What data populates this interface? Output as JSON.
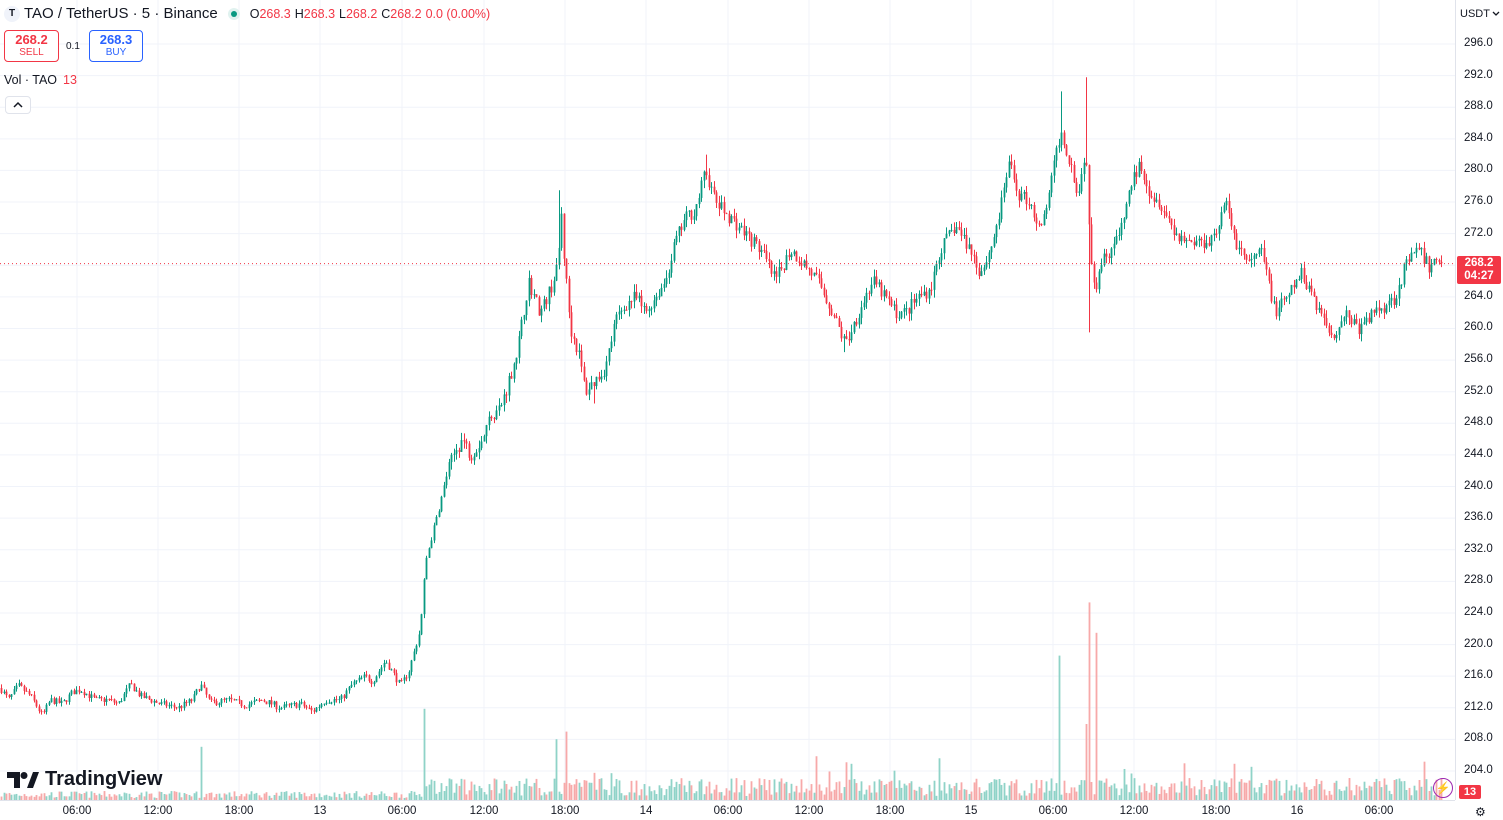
{
  "legend": {
    "symbol_icon": "T",
    "title": "TAO / TetherUS · 5 · Binance",
    "ohlc": [
      {
        "k": "O",
        "v": "268.3"
      },
      {
        "k": "H",
        "v": "268.3"
      },
      {
        "k": "L",
        "v": "268.2"
      },
      {
        "k": "C",
        "v": "268.2"
      }
    ],
    "change": "0.0 (0.00%)"
  },
  "trade": {
    "sell_price": "268.2",
    "sell_label": "SELL",
    "spread": "0.1",
    "buy_price": "268.3",
    "buy_label": "BUY"
  },
  "volume_legend": {
    "label": "Vol · TAO",
    "value": "13"
  },
  "currency": "USDT",
  "current_price_tag": {
    "price": "268.2",
    "countdown": "04:27"
  },
  "volume_tag": "13",
  "branding": "TradingView",
  "icons": {
    "collapse": "chevron-up-icon",
    "currency_dropdown": "chevron-down-icon",
    "bolt": "lightning-icon",
    "settings": "gear-icon",
    "logo": "tradingview-logo-icon"
  },
  "colors": {
    "up": "#089981",
    "down": "#f23645",
    "vol_up": "#8fd3c8",
    "vol_down": "#f7a9a9",
    "grid": "#f0f3fa"
  },
  "chart_data": {
    "type": "candlestick",
    "price_ticks": [
      "296.0",
      "292.0",
      "288.0",
      "284.0",
      "280.0",
      "276.0",
      "272.0",
      "268.0",
      "264.0",
      "260.0",
      "256.0",
      "252.0",
      "248.0",
      "244.0",
      "240.0",
      "236.0",
      "232.0",
      "228.0",
      "224.0",
      "220.0",
      "216.0",
      "212.0",
      "208.0",
      "204.0"
    ],
    "time_ticks": [
      "06:00",
      "12:00",
      "18:00",
      "13",
      "06:00",
      "12:00",
      "18:00",
      "14",
      "06:00",
      "12:00",
      "18:00",
      "15",
      "06:00",
      "12:00",
      "18:00",
      "16",
      "06:00"
    ],
    "current_price": 268.2,
    "close_path": [
      [
        0,
        214.5
      ],
      [
        8,
        213.0
      ],
      [
        18,
        214.8
      ],
      [
        30,
        213.5
      ],
      [
        42,
        211.0
      ],
      [
        50,
        213.0
      ],
      [
        62,
        212.5
      ],
      [
        72,
        214.0
      ],
      [
        80,
        214.3
      ],
      [
        95,
        213.0
      ],
      [
        108,
        213.0
      ],
      [
        118,
        212.5
      ],
      [
        130,
        215.0
      ],
      [
        140,
        213.5
      ],
      [
        160,
        212.5
      ],
      [
        178,
        212.0
      ],
      [
        192,
        213.0
      ],
      [
        200,
        215.0
      ],
      [
        210,
        212.6
      ],
      [
        228,
        213.0
      ],
      [
        245,
        212.3
      ],
      [
        262,
        213.0
      ],
      [
        280,
        212.0
      ],
      [
        300,
        212.5
      ],
      [
        312,
        211.5
      ],
      [
        325,
        213.0
      ],
      [
        340,
        213.0
      ],
      [
        352,
        215.0
      ],
      [
        365,
        216.0
      ],
      [
        372,
        215.3
      ],
      [
        385,
        218.0
      ],
      [
        400,
        214.8
      ],
      [
        408,
        216.5
      ],
      [
        420,
        222.0
      ],
      [
        425,
        230.5
      ],
      [
        432,
        234.0
      ],
      [
        440,
        238.0
      ],
      [
        447,
        242.0
      ],
      [
        455,
        244.5
      ],
      [
        462,
        246.0
      ],
      [
        470,
        244.0
      ],
      [
        482,
        246.0
      ],
      [
        490,
        249.0
      ],
      [
        500,
        250.0
      ],
      [
        510,
        254.0
      ],
      [
        518,
        258.0
      ],
      [
        528,
        266.0
      ],
      [
        540,
        262.0
      ],
      [
        550,
        265.0
      ],
      [
        558,
        268.0
      ],
      [
        560,
        276.5
      ],
      [
        563,
        270.0
      ],
      [
        570,
        260.0
      ],
      [
        578,
        257.0
      ],
      [
        585,
        252.0
      ],
      [
        595,
        253.5
      ],
      [
        605,
        255.0
      ],
      [
        615,
        261.0
      ],
      [
        625,
        263.0
      ],
      [
        635,
        264.0
      ],
      [
        645,
        262.0
      ],
      [
        655,
        264.0
      ],
      [
        665,
        266.0
      ],
      [
        675,
        271.0
      ],
      [
        685,
        274.0
      ],
      [
        695,
        275.0
      ],
      [
        705,
        280.0
      ],
      [
        715,
        276.0
      ],
      [
        730,
        274.0
      ],
      [
        745,
        272.0
      ],
      [
        760,
        270.0
      ],
      [
        775,
        266.0
      ],
      [
        790,
        270.0
      ],
      [
        805,
        268.0
      ],
      [
        820,
        265.5
      ],
      [
        832,
        262.0
      ],
      [
        845,
        258.0
      ],
      [
        858,
        262.0
      ],
      [
        872,
        266.0
      ],
      [
        885,
        264.0
      ],
      [
        895,
        262.0
      ],
      [
        905,
        262.0
      ],
      [
        918,
        264.0
      ],
      [
        930,
        265.0
      ],
      [
        940,
        270.0
      ],
      [
        955,
        273.0
      ],
      [
        970,
        270.0
      ],
      [
        980,
        267.0
      ],
      [
        990,
        270.0
      ],
      [
        1000,
        275.0
      ],
      [
        1008,
        281.0
      ],
      [
        1018,
        277.0
      ],
      [
        1030,
        276.0
      ],
      [
        1040,
        272.0
      ],
      [
        1050,
        278.0
      ],
      [
        1060,
        285.0
      ],
      [
        1070,
        281.0
      ],
      [
        1078,
        277.0
      ],
      [
        1085,
        283.0
      ],
      [
        1090,
        270.0
      ],
      [
        1095,
        265.0
      ],
      [
        1100,
        268.5
      ],
      [
        1110,
        270.0
      ],
      [
        1120,
        272.0
      ],
      [
        1130,
        278.0
      ],
      [
        1140,
        281.0
      ],
      [
        1150,
        277.0
      ],
      [
        1160,
        276.0
      ],
      [
        1175,
        272.0
      ],
      [
        1190,
        271.0
      ],
      [
        1205,
        271.0
      ],
      [
        1215,
        272.0
      ],
      [
        1225,
        276.0
      ],
      [
        1235,
        271.0
      ],
      [
        1250,
        268.0
      ],
      [
        1260,
        270.0
      ],
      [
        1268,
        266.0
      ],
      [
        1275,
        262.0
      ],
      [
        1288,
        264.0
      ],
      [
        1300,
        267.0
      ],
      [
        1310,
        265.0
      ],
      [
        1320,
        262.0
      ],
      [
        1332,
        259.0
      ],
      [
        1345,
        262.0
      ],
      [
        1360,
        259.8
      ],
      [
        1372,
        262.0
      ],
      [
        1385,
        263.0
      ],
      [
        1395,
        264.0
      ],
      [
        1405,
        268.0
      ],
      [
        1418,
        270.0
      ],
      [
        1430,
        267.5
      ],
      [
        1436,
        269.0
      ],
      [
        1443,
        268.2
      ]
    ],
    "spikes": [
      {
        "x": 1060,
        "high": 290.0
      },
      {
        "x": 1085,
        "high": 291.8
      },
      {
        "x": 1088,
        "low": 259.5
      },
      {
        "x": 558,
        "high": 277.5
      },
      {
        "x": 705,
        "high": 282.0
      },
      {
        "x": 843,
        "low": 257.0
      },
      {
        "x": 592,
        "low": 250.5
      }
    ],
    "volume_spikes": [
      {
        "x": 1058,
        "v": 19
      },
      {
        "x": 1088,
        "v": 26
      },
      {
        "x": 1094,
        "v": 22
      },
      {
        "x": 1084,
        "v": 10
      },
      {
        "x": 422,
        "v": 12
      },
      {
        "x": 564,
        "v": 9
      },
      {
        "x": 200,
        "v": 7
      },
      {
        "x": 555,
        "v": 8
      }
    ]
  }
}
